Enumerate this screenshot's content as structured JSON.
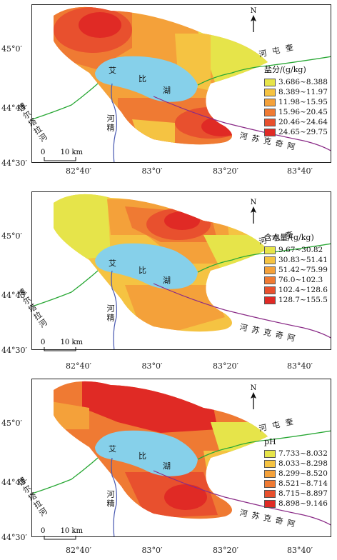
{
  "map_common": {
    "lat_labels": [
      "45°0′",
      "44°45′",
      "44°30′"
    ],
    "lon_labels": [
      "82°40′",
      "83°0′",
      "83°20′",
      "83°40′"
    ],
    "north": "N",
    "scale_zero": "0",
    "scale_text": "10 km",
    "place_names": {
      "lake_a": "艾",
      "lake_b": "比",
      "lake_c": "湖",
      "bortala": "博尔塔拉河",
      "jing": "河精",
      "kuitun": "河屯奎",
      "akqi": "河苏克奇阿"
    }
  },
  "panels": [
    {
      "legend_title": "盐分/(g/kg)",
      "classes": [
        "3.686~8.388",
        "8.389~11.97",
        "11.98~15.95",
        "15.96~20.45",
        "20.46~24.64",
        "24.65~29.75"
      ]
    },
    {
      "legend_title": "含水量/(g/kg)",
      "classes": [
        "9.67~30.82",
        "30.83~51.41",
        "51.42~75.99",
        "76.0~102.3",
        "102.4~128.6",
        "128.7~155.5"
      ]
    },
    {
      "legend_title": "pH",
      "classes": [
        "7.733~8.032",
        "8.033~8.298",
        "8.299~8.520",
        "8.521~8.714",
        "8.715~8.897",
        "8.898~9.146"
      ]
    }
  ],
  "colors": {
    "classes": [
      "#e6e44a",
      "#f5c342",
      "#f4a13a",
      "#ef7a33",
      "#e8502e",
      "#e02a25"
    ],
    "lake": "#86d0ea",
    "river_green": "#2aa836",
    "river_purple": "#8a2b87",
    "river_blue": "#4556b0"
  }
}
